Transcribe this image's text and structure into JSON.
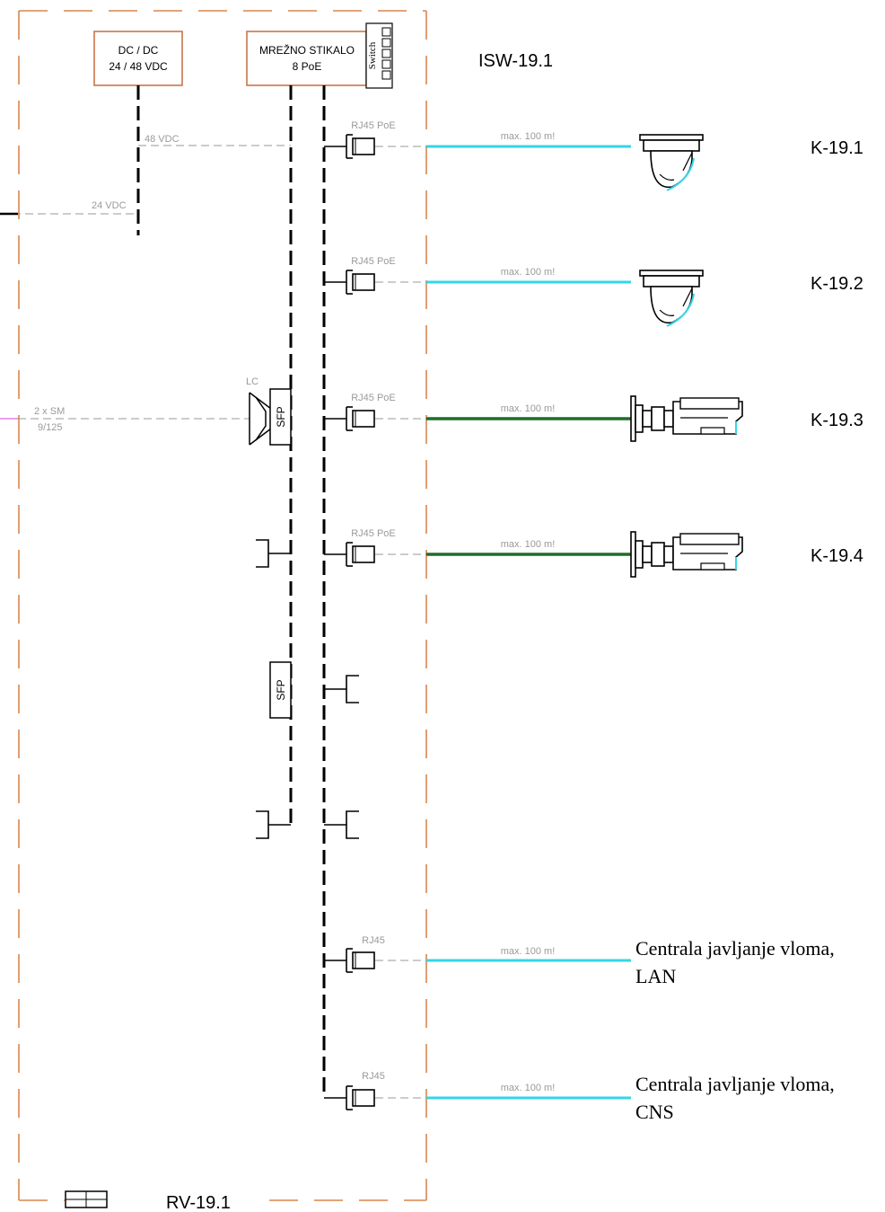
{
  "colors": {
    "cabinet": "#d9864f",
    "box": "#c8764a",
    "bus": "#000000",
    "thin": "#9a9a9a",
    "cyan": "#33d6e8",
    "green": "#1e6e27",
    "fiber": "#d63bd6"
  },
  "cabinet": {
    "label": "RV-19.1"
  },
  "dcdc": {
    "line1": "DC / DC",
    "line2": "24 / 48 VDC"
  },
  "switch_box": {
    "line1": "MREŽNO STIKALO",
    "line2": "8 PoE",
    "side_label": "Switch"
  },
  "switch_id": "ISW-19.1",
  "power": {
    "v48": "48 VDC",
    "v24": "24 VDC"
  },
  "fiber": {
    "line1": "2 x SM",
    "line2": "9/125",
    "connector": "LC",
    "sfp": "SFP"
  },
  "ports": [
    {
      "port_label": "RJ45 PoE",
      "cable_label": "max. 100 m!",
      "cable_color": "cyan",
      "device": "dome-camera-icon",
      "device_label": "K-19.1"
    },
    {
      "port_label": "RJ45 PoE",
      "cable_label": "max. 100 m!",
      "cable_color": "cyan",
      "device": "dome-camera-icon",
      "device_label": "K-19.2"
    },
    {
      "port_label": "RJ45 PoE",
      "cable_label": "max. 100 m!",
      "cable_color": "green",
      "device": "bullet-camera-icon",
      "device_label": "K-19.3"
    },
    {
      "port_label": "RJ45 PoE",
      "cable_label": "max. 100 m!",
      "cable_color": "green",
      "device": "bullet-camera-icon",
      "device_label": "K-19.4"
    },
    {
      "port_label": "RJ45",
      "cable_label": "max. 100 m!",
      "cable_color": "cyan",
      "device_label_line1": "Centrala javljanje vloma,",
      "device_label_line2": "LAN"
    },
    {
      "port_label": "RJ45",
      "cable_label": "max. 100 m!",
      "cable_color": "cyan",
      "device_label_line1": "Centrala javljanje vloma,",
      "device_label_line2": "CNS"
    }
  ]
}
